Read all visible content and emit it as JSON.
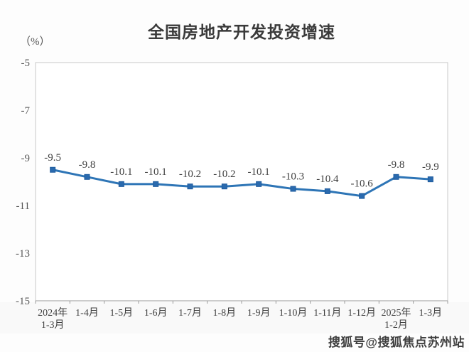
{
  "chart_data": {
    "type": "line",
    "title": "全国房地产开发投资增速",
    "unit_label": "（%）",
    "categories": [
      [
        "2024年",
        "1-3月"
      ],
      [
        "1-4月"
      ],
      [
        "1-5月"
      ],
      [
        "1-6月"
      ],
      [
        "1-7月"
      ],
      [
        "1-8月"
      ],
      [
        "1-9月"
      ],
      [
        "1-10月"
      ],
      [
        "1-11月"
      ],
      [
        "1-12月"
      ],
      [
        "2025年",
        "1-2月"
      ],
      [
        "1-3月"
      ]
    ],
    "values": [
      -9.5,
      -9.8,
      -10.1,
      -10.1,
      -10.2,
      -10.2,
      -10.1,
      -10.3,
      -10.4,
      -10.6,
      -9.8,
      -9.9
    ],
    "data_labels": [
      "-9.5",
      "-9.8",
      "-10.1",
      "-10.1",
      "-10.2",
      "-10.2",
      "-10.1",
      "-10.3",
      "-10.4",
      "-10.6",
      "-9.8",
      "-9.9"
    ],
    "xlabel": "",
    "ylabel": "（%）",
    "ylim": [
      -15,
      -5
    ],
    "yticks": [
      -5,
      -7,
      -9,
      -11,
      -13,
      -15
    ],
    "grid": false,
    "legend": "none",
    "line_color": "#2E75B6",
    "marker_color": "#2A6AAE",
    "marker_stroke": "#1F5C9E",
    "axis_border_color": "#C8C8C8",
    "axis_line_color": "#9A9A9A",
    "tick_label_color": "#595959",
    "x_label_color": "#3F3F3F",
    "data_label_color": "#3F3F3F"
  },
  "watermark": {
    "text": "搜狐号@搜狐焦点苏州站"
  }
}
